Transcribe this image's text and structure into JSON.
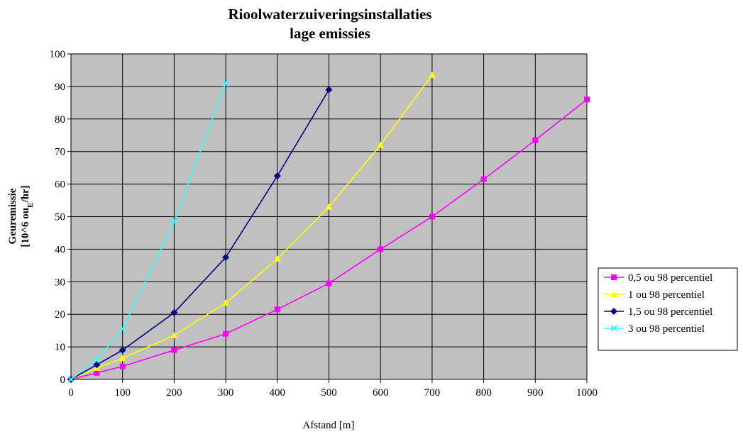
{
  "chart_data": {
    "type": "line",
    "title": "Rioolwaterzuiveringsinstallaties",
    "subtitle": "lage emissies",
    "xlabel": "Afstand [m]",
    "ylabel_line1": "Geuremissie",
    "ylabel_line2_prefix": "[10^6 ou",
    "ylabel_line2_sub": "E",
    "ylabel_line2_suffix": "/hr]",
    "xlim": [
      0,
      1000
    ],
    "ylim": [
      0,
      100
    ],
    "xticks": [
      "0",
      "100",
      "200",
      "300",
      "400",
      "500",
      "600",
      "700",
      "800",
      "900",
      "1000"
    ],
    "yticks": [
      "0",
      "10",
      "20",
      "30",
      "40",
      "50",
      "60",
      "70",
      "80",
      "90",
      "100"
    ],
    "grid": true,
    "plot_background": "#c0c0c0",
    "legend_position": "right",
    "series": [
      {
        "name": "0,5 ou 98 percentiel",
        "color": "#ff00ff",
        "marker": "square",
        "x": [
          0,
          50,
          100,
          200,
          300,
          400,
          500,
          600,
          700,
          800,
          900,
          1000
        ],
        "y": [
          0,
          2,
          4,
          9,
          14,
          21.5,
          29.5,
          40,
          50,
          61.5,
          73.5,
          86
        ]
      },
      {
        "name": "1 ou 98 percentiel",
        "color": "#ffff00",
        "marker": "triangle",
        "x": [
          0,
          50,
          100,
          200,
          300,
          400,
          500,
          600,
          700
        ],
        "y": [
          0,
          3.5,
          6.5,
          13.5,
          23.5,
          37,
          53,
          72,
          93.5
        ]
      },
      {
        "name": "1,5 ou 98 percentiel",
        "color": "#000080",
        "marker": "diamond",
        "x": [
          0,
          50,
          100,
          200,
          300,
          400,
          500
        ],
        "y": [
          0,
          4.5,
          9,
          20.5,
          37.5,
          62.5,
          89
        ]
      },
      {
        "name": "3 ou 98 percentiel",
        "color": "#33ffff",
        "marker": "x",
        "x": [
          0,
          50,
          100,
          200,
          300
        ],
        "y": [
          0,
          6,
          15.5,
          48.5,
          91
        ]
      }
    ]
  }
}
